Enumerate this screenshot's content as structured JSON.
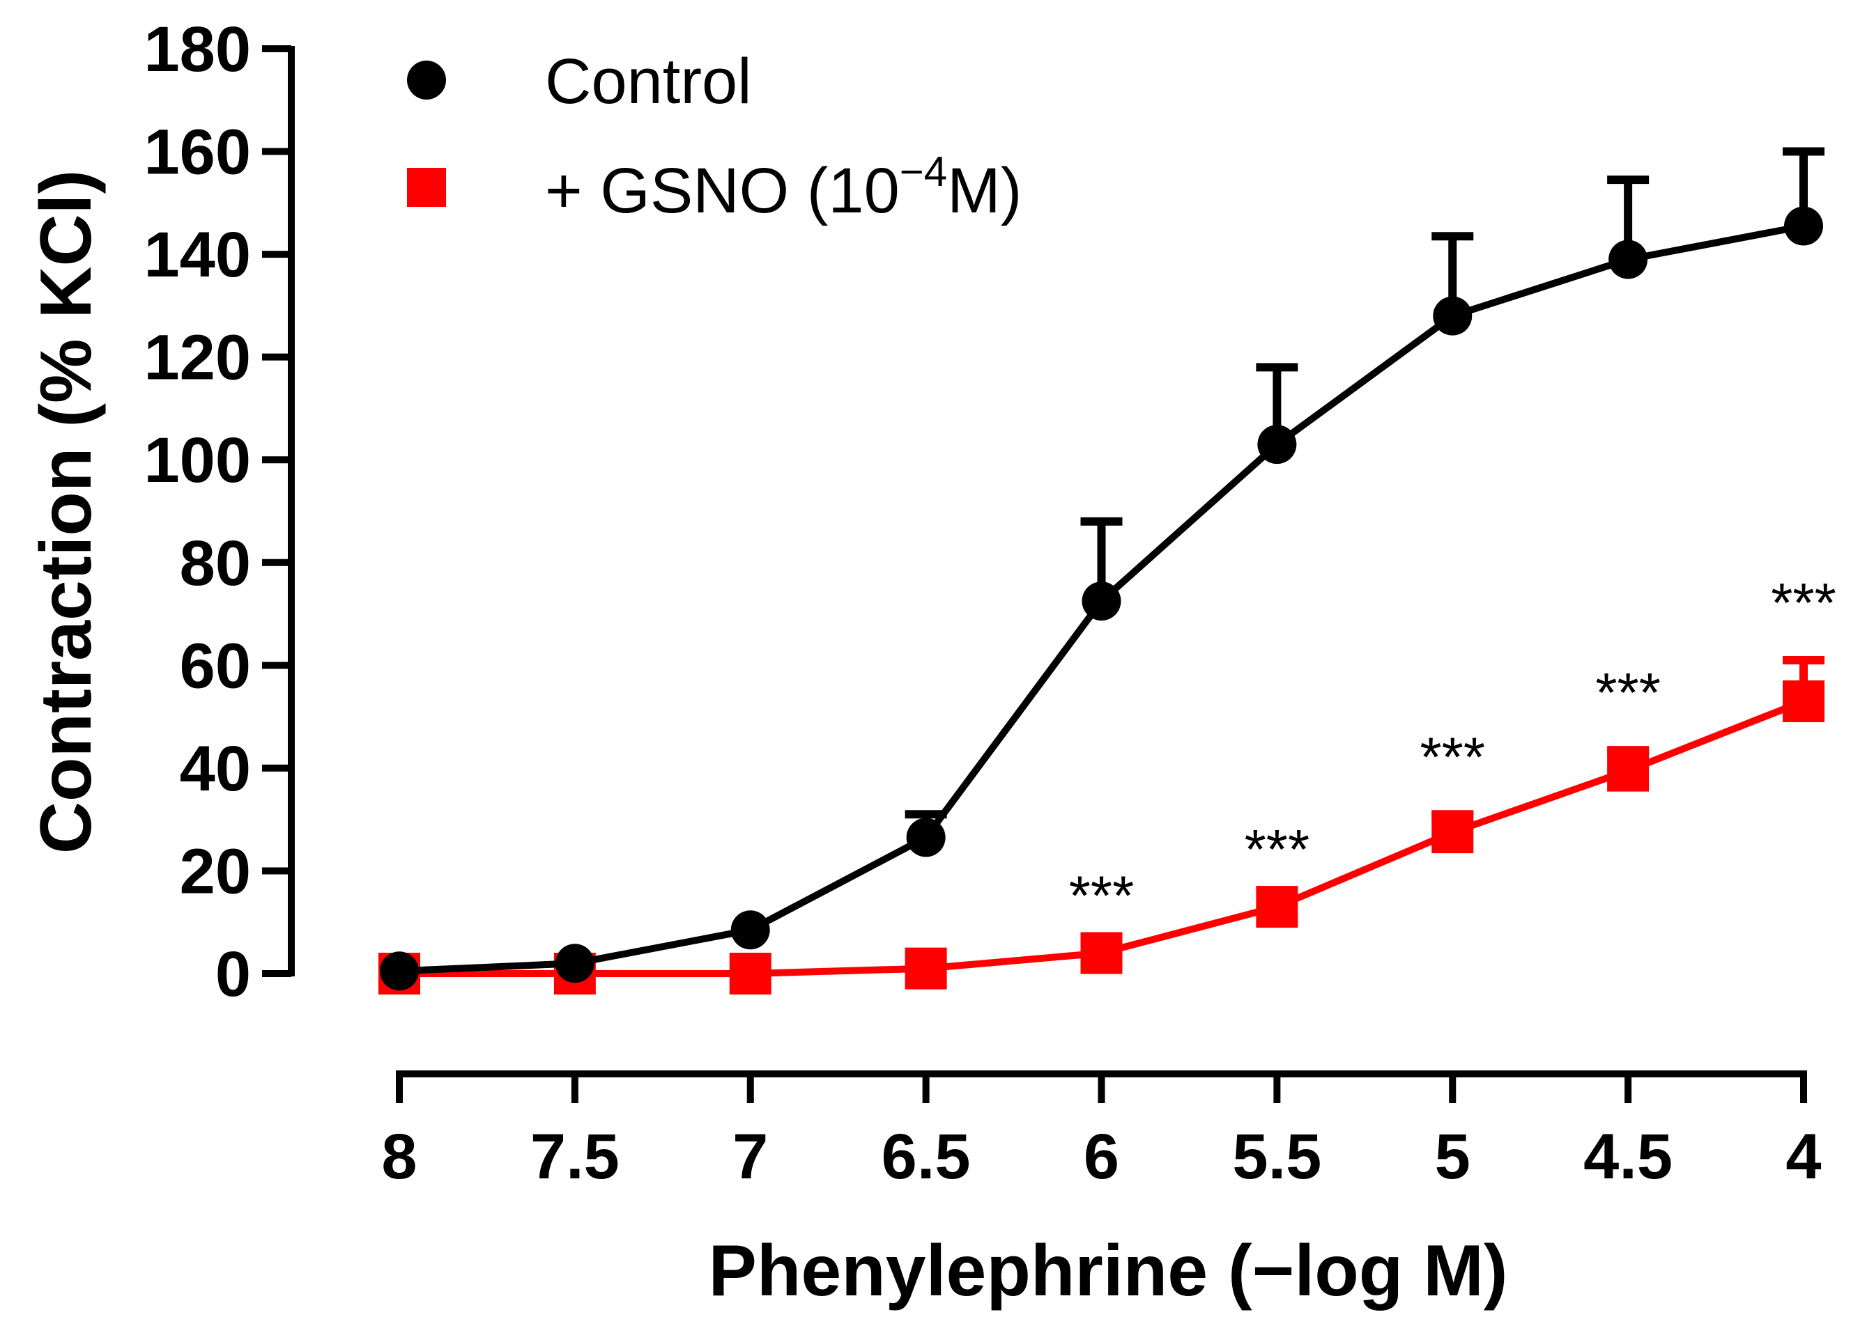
{
  "chart_data": {
    "type": "line",
    "title": "",
    "xlabel": "Phenylephrine (−log M)",
    "ylabel": "Contraction (% KCl)",
    "x": [
      8,
      7.5,
      7,
      6.5,
      6,
      5.5,
      5,
      4.5,
      4
    ],
    "x_tick_labels": [
      "8",
      "7.5",
      "7",
      "6.5",
      "6",
      "5.5",
      "5",
      "4.5",
      "4"
    ],
    "y_ticks": [
      0,
      20,
      40,
      60,
      80,
      100,
      120,
      140,
      160,
      180
    ],
    "y_tick_labels": [
      "0",
      "20",
      "40",
      "60",
      "80",
      "100",
      "120",
      "140",
      "160",
      "180"
    ],
    "xlim": [
      8,
      4
    ],
    "ylim": [
      0,
      180
    ],
    "grid": false,
    "legend_position": "top-left",
    "series": [
      {
        "name": "Control",
        "color": "#000000",
        "marker": "circle",
        "values": [
          0.5,
          2,
          8.5,
          26.5,
          72.5,
          103,
          128,
          139,
          145.5
        ],
        "error_upper": [
          0,
          0,
          0,
          4.5,
          15.5,
          15,
          15.5,
          15.5,
          14.5
        ]
      },
      {
        "name": "+ GSNO (10⁻⁴M)",
        "legend_main": "+ GSNO (10",
        "legend_sup": "−4",
        "legend_tail": "M)",
        "color": "#ff0000",
        "marker": "square",
        "values": [
          0,
          0,
          0,
          1,
          4,
          13,
          27.5,
          39.5,
          53
        ],
        "error_upper": [
          0,
          0,
          0,
          0,
          0,
          0,
          3.5,
          4,
          8
        ]
      }
    ],
    "annotations": [
      {
        "x": 6,
        "text": "***"
      },
      {
        "x": 5.5,
        "text": "***"
      },
      {
        "x": 5,
        "text": "***"
      },
      {
        "x": 4.5,
        "text": "***"
      },
      {
        "x": 4,
        "text": "***"
      }
    ]
  }
}
